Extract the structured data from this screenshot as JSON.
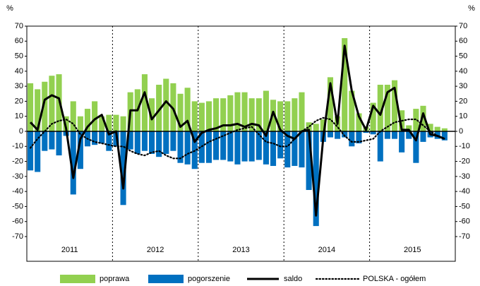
{
  "chart_data": {
    "type": "bar-line",
    "y_unit_label": "%",
    "x_group_labels": [
      "2011",
      "2012",
      "2013",
      "2014",
      "2015"
    ],
    "categories": [
      null,
      null,
      null,
      null,
      null,
      null,
      null,
      null,
      null,
      null,
      null,
      null,
      null,
      null,
      null,
      null,
      null,
      null,
      null,
      null,
      null,
      null,
      null,
      null,
      null,
      null,
      null,
      null,
      null,
      null,
      null,
      null,
      null,
      null,
      null,
      null,
      null,
      null,
      null,
      null,
      null,
      null,
      null,
      null,
      null,
      null,
      null,
      null,
      null,
      null,
      null,
      null,
      null,
      null,
      null,
      null,
      null,
      null,
      null,
      null
    ],
    "series": [
      {
        "name": "poprawa",
        "kind": "bar",
        "color": "#92d050",
        "values": [
          32,
          28,
          33,
          37,
          38,
          10,
          20,
          10,
          15,
          20,
          10,
          11,
          11,
          10,
          26,
          28,
          38,
          22,
          31,
          35,
          32,
          25,
          29,
          20,
          19,
          20,
          22,
          22,
          24,
          26,
          26,
          22,
          22,
          27,
          21,
          20,
          20,
          22,
          26,
          6,
          5,
          8,
          36,
          10,
          62,
          27,
          12,
          3,
          19,
          31,
          31,
          34,
          14,
          4,
          15,
          17,
          5,
          3,
          2,
          null
        ]
      },
      {
        "name": "pogorszenie",
        "kind": "bar",
        "color": "#0070c0",
        "values": [
          -26,
          -27,
          -13,
          -12,
          -16,
          -3,
          -42,
          -25,
          -10,
          -9,
          -8,
          -13,
          -10,
          -49,
          -12,
          -15,
          -13,
          -15,
          -17,
          -15,
          -13,
          -21,
          -22,
          -25,
          -21,
          -21,
          -19,
          -19,
          -20,
          -22,
          -20,
          -20,
          -19,
          -22,
          -23,
          -18,
          -24,
          -23,
          -24,
          -39,
          -63,
          -7,
          -4,
          -5,
          -4,
          -10,
          -8,
          -1,
          -2,
          -20,
          -5,
          -5,
          -14,
          -5,
          -21,
          -7,
          -4,
          -5,
          -6,
          null
        ]
      },
      {
        "name": "saldo",
        "kind": "line",
        "color": "#000000",
        "values": [
          6,
          1,
          21,
          24,
          22,
          2,
          -31,
          -5,
          3,
          8,
          11,
          -2,
          0,
          -38,
          14,
          14,
          26,
          8,
          14,
          20,
          15,
          3,
          7,
          -7,
          -1,
          1,
          2,
          4,
          4,
          5,
          3,
          5,
          4,
          -3,
          13,
          1,
          -3,
          -5,
          0,
          1,
          -56,
          -5,
          32,
          5,
          57,
          27,
          10,
          1,
          17,
          11,
          26,
          29,
          1,
          1,
          -6,
          12,
          -2,
          -3,
          -5,
          null
        ]
      },
      {
        "name": "POLSKA - ogółem",
        "kind": "dotted",
        "color": "#000000",
        "values": [
          -11,
          -5,
          0,
          5,
          7,
          8,
          5,
          -2,
          -5,
          -7,
          -8,
          -9,
          -10,
          -10,
          -13,
          -15,
          -16,
          -14,
          -13,
          -16,
          -18,
          -18,
          -15,
          -13,
          -10,
          -7,
          -5,
          -3,
          -1,
          1,
          2,
          3,
          -2,
          -7,
          -8,
          -10,
          -10,
          -5,
          0,
          3,
          7,
          9,
          8,
          3,
          -3,
          -7,
          -7,
          -6,
          -5,
          0,
          3,
          6,
          7,
          8,
          8,
          4,
          0,
          -3,
          -5,
          null
        ]
      }
    ],
    "ylim": [
      -70,
      70
    ],
    "yticks": [
      -70,
      -60,
      -50,
      -40,
      -30,
      -20,
      -10,
      0,
      10,
      20,
      30,
      40,
      50,
      60,
      70
    ]
  }
}
